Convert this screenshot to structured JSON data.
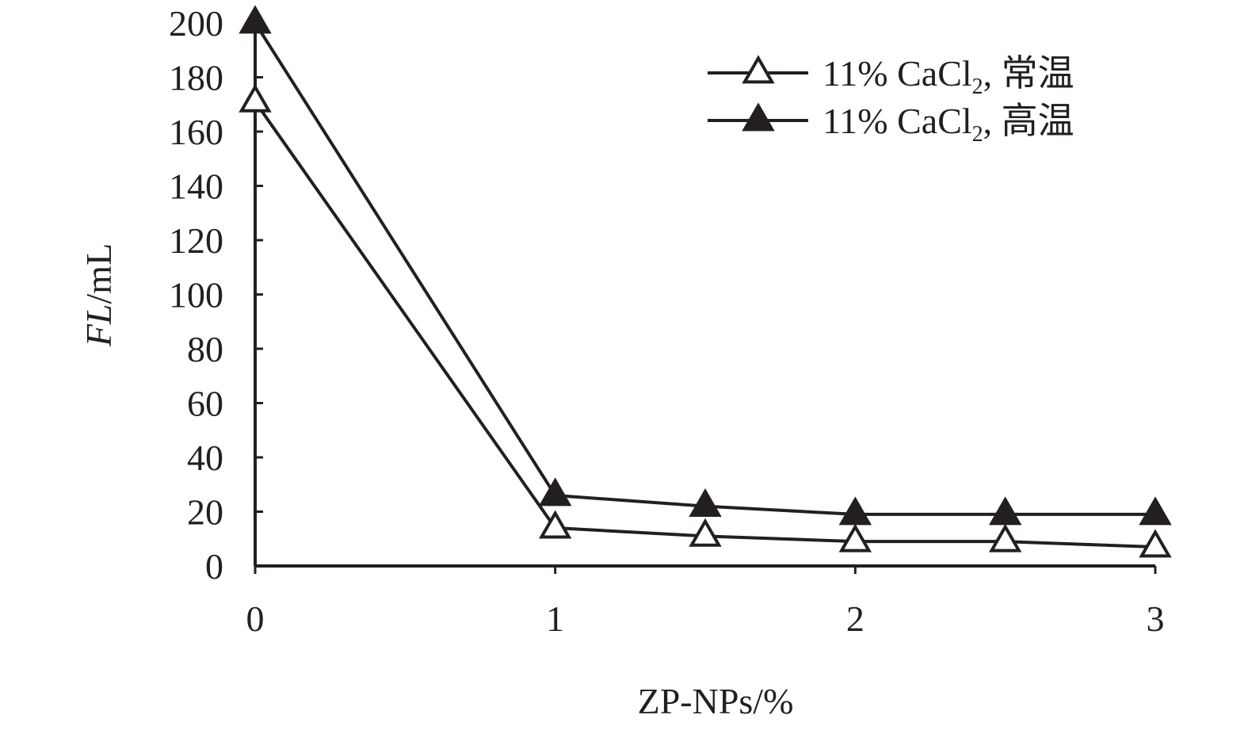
{
  "chart_data": {
    "type": "line",
    "xlabel": "ZP-NPs/%",
    "ylabel": {
      "italic": "FL",
      "rest": "/mL"
    },
    "xlim": [
      0,
      3
    ],
    "ylim": [
      0,
      200
    ],
    "xticks": [
      "0",
      "1",
      "2",
      "3"
    ],
    "yticks": [
      "0",
      "20",
      "40",
      "60",
      "80",
      "100",
      "120",
      "140",
      "160",
      "180",
      "200"
    ],
    "grid": false,
    "legend_position": "top-right",
    "series": [
      {
        "name": "11% CaCl2, 常温",
        "legend": {
          "main": "11% CaCl",
          "sub": "2",
          "tail": ", 常温"
        },
        "marker": "open-triangle",
        "color": "#231f20",
        "x": [
          0,
          1,
          1.5,
          2,
          2.5,
          3
        ],
        "y": [
          171,
          14,
          11,
          9,
          9,
          7
        ]
      },
      {
        "name": "11% CaCl2, 高温",
        "legend": {
          "main": "11% CaCl",
          "sub": "2",
          "tail": ", 高温"
        },
        "marker": "filled-triangle",
        "color": "#231f20",
        "x": [
          0,
          1,
          1.5,
          2,
          2.5,
          3
        ],
        "y": [
          200,
          26,
          22,
          19,
          19,
          19
        ]
      }
    ]
  }
}
